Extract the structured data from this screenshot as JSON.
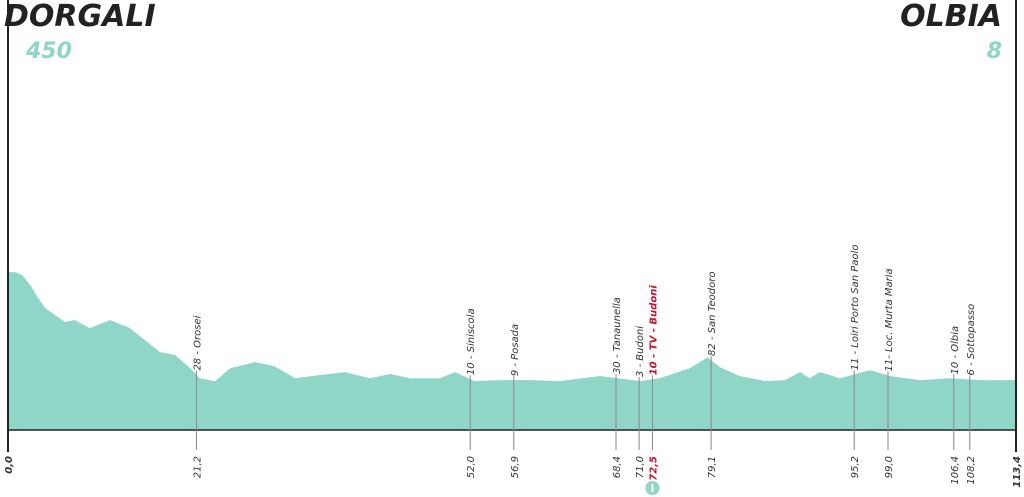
{
  "chart_data": {
    "type": "area",
    "start": {
      "name": "DORGALI",
      "elevation": 450
    },
    "end": {
      "name": "OLBIA",
      "elevation": 8
    },
    "color": "#8fd6c8",
    "highlight_color": "#c8102e",
    "xlim": [
      0,
      113.4
    ],
    "ylim": [
      -196,
      1564
    ],
    "xticks": [
      {
        "value": 0,
        "label": "0,0"
      },
      {
        "value": 113.4,
        "label": "113,4"
      }
    ],
    "x": [
      0,
      0.8,
      1.6,
      2.5,
      3.4,
      4.2,
      5.3,
      6.4,
      7.5,
      9.2,
      11.5,
      13.7,
      15.4,
      17.1,
      18.8,
      20.5,
      21.6,
      23.3,
      25,
      27.8,
      30,
      32.3,
      35.1,
      37.9,
      40.7,
      43,
      45.2,
      48.6,
      50.3,
      52.5,
      55.3,
      58.8,
      62.1,
      66.6,
      71.1,
      73.3,
      76.7,
      78.7,
      80.1,
      82.3,
      85.2,
      87.4,
      89.1,
      90.2,
      91.3,
      93.6,
      97,
      99.2,
      102.6,
      106,
      109.3,
      113.4
    ],
    "values": [
      450,
      450,
      438,
      397,
      344,
      303,
      274,
      246,
      254,
      221,
      254,
      221,
      172,
      123,
      111,
      57,
      16,
      4,
      57,
      82,
      65,
      16,
      29,
      41,
      16,
      33,
      16,
      16,
      41,
      4,
      8,
      8,
      4,
      25,
      4,
      16,
      57,
      102,
      61,
      25,
      4,
      8,
      41,
      16,
      41,
      16,
      49,
      25,
      8,
      16,
      8,
      8
    ],
    "waypoints": [
      {
        "km": {
          "value": 21.2,
          "label": "21,2"
        },
        "name": "28 - Orosei"
      },
      {
        "km": {
          "value": 52.0,
          "label": "52,0"
        },
        "name": "10 - Siniscola"
      },
      {
        "km": {
          "value": 56.9,
          "label": "56,9"
        },
        "name": "9 - Posada"
      },
      {
        "km": {
          "value": 68.4,
          "label": "68,4"
        },
        "name": "30 - Tanaunella"
      },
      {
        "km": {
          "value": 71.0,
          "label": "71,0"
        },
        "name": "3 - Budoni"
      },
      {
        "km": {
          "value": 72.5,
          "label": "72,5"
        },
        "name": "10 - TV - Budoni",
        "highlight": true
      },
      {
        "km": {
          "value": 79.1,
          "label": "79,1"
        },
        "name": "82 - San Teodoro"
      },
      {
        "km": {
          "value": 95.2,
          "label": "95,2"
        },
        "name": "11 - Loiri Porto San Paolo"
      },
      {
        "km": {
          "value": 99.0,
          "label": "99,0"
        },
        "name": "11- Loc. Murta Maria"
      },
      {
        "km": {
          "value": 106.4,
          "label": "106,4"
        },
        "name": "10 - Olbia"
      },
      {
        "km": {
          "value": 108.2,
          "label": "108,2"
        },
        "name": "6 - Sottopasso"
      }
    ]
  }
}
